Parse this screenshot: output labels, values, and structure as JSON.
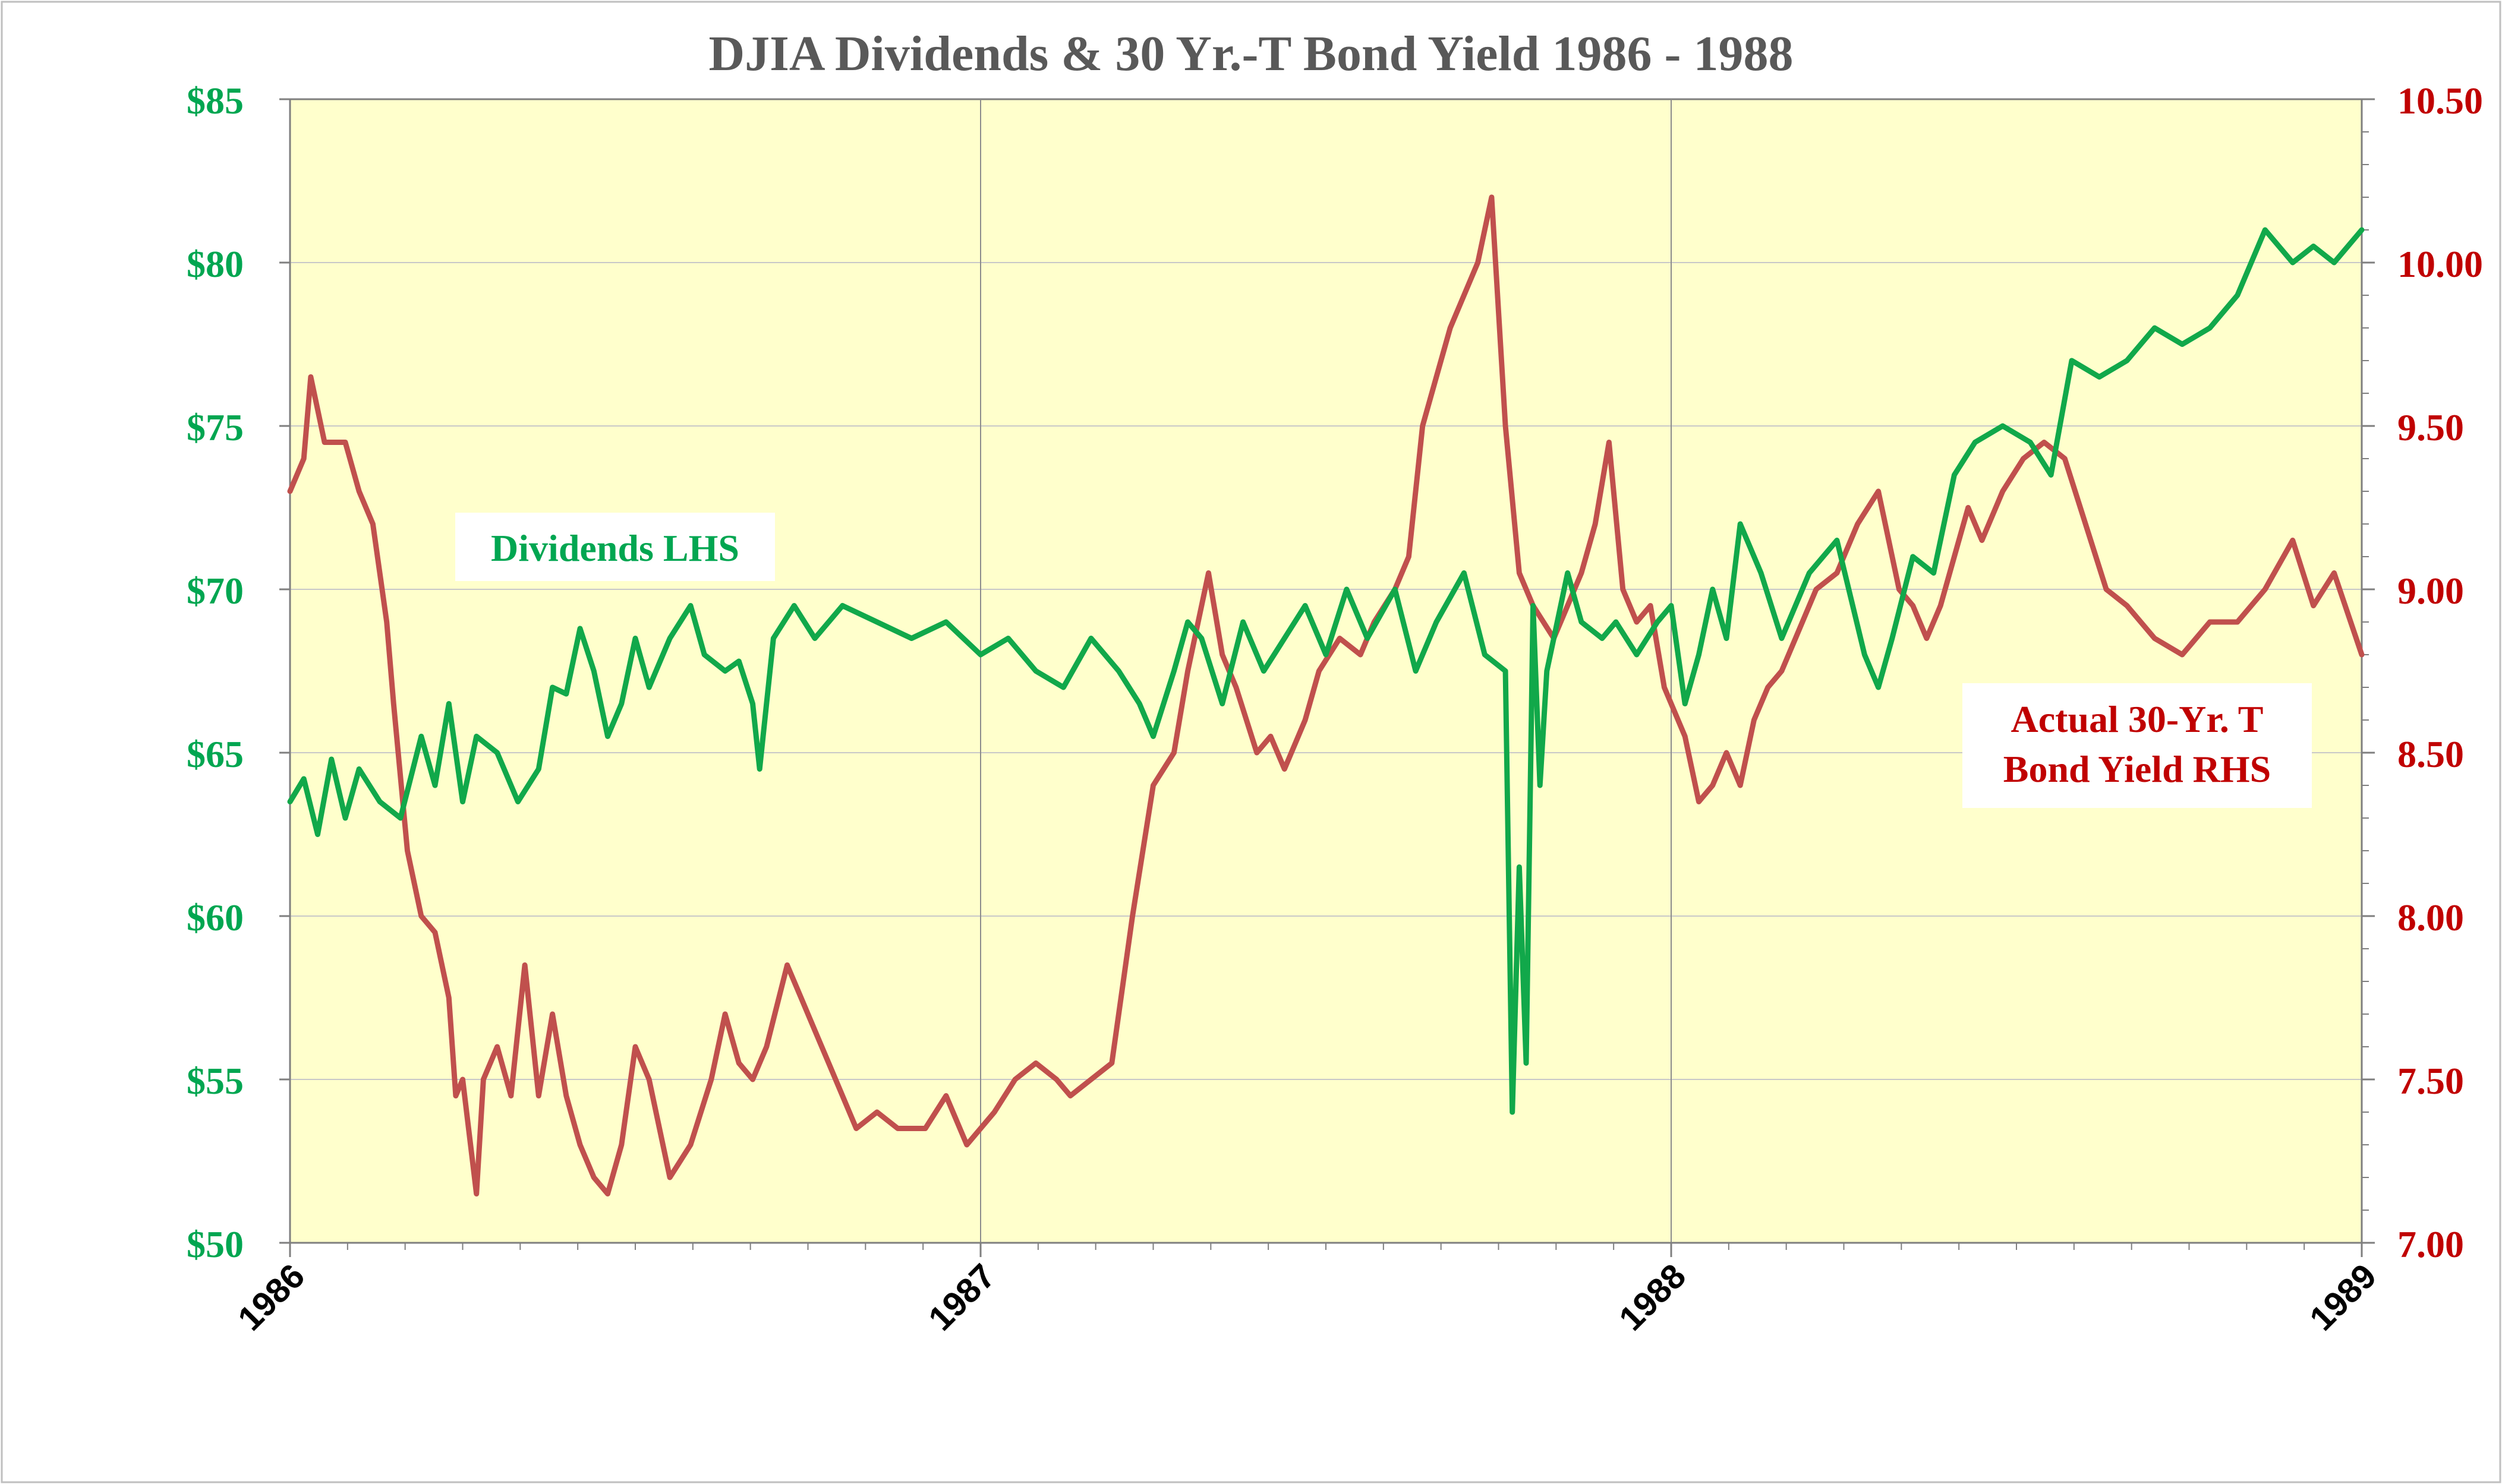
{
  "chart_data": {
    "type": "line",
    "title": "DJIA Dividends & 30 Yr.-T Bond Yield 1986 - 1988",
    "x_ticks": [
      "1986",
      "1987",
      "1988",
      "1989"
    ],
    "x_range": [
      1986,
      1989
    ],
    "y_left": {
      "range": [
        50,
        85
      ],
      "ticks": [
        50,
        55,
        60,
        65,
        70,
        75,
        80,
        85
      ],
      "tick_labels": [
        "$50",
        "$55",
        "$60",
        "$65",
        "$70",
        "$75",
        "$80",
        "$85"
      ]
    },
    "y_right": {
      "range": [
        7.0,
        10.5
      ],
      "ticks": [
        7.0,
        7.5,
        8.0,
        8.5,
        9.0,
        9.5,
        10.0,
        10.5
      ],
      "tick_labels": [
        "7.00",
        "7.50",
        "8.00",
        "8.50",
        "9.00",
        "9.50",
        "10.00",
        "10.50"
      ]
    },
    "grid": true,
    "colors": {
      "plot_background": "#FFFFCC",
      "dividends": "#11A84A",
      "bond_yield": "#C0504D",
      "left_axis_text": "#00A651",
      "right_axis_text": "#C00000",
      "title": "#595959",
      "gridline": "#C8C8C8",
      "border": "#7F7F7F"
    },
    "annotations": [
      {
        "id": "dividends",
        "text": "Dividends LHS",
        "position": "upper-left",
        "color": "#00A651"
      },
      {
        "id": "bond",
        "lines": [
          "Actual 30-Yr. T",
          "Bond Yield RHS"
        ],
        "position": "right",
        "color": "#C00000"
      }
    ],
    "series": [
      {
        "name": "Dividends",
        "axis": "left",
        "color": "#11A84A",
        "x": [
          1986.0,
          1986.02,
          1986.04,
          1986.06,
          1986.08,
          1986.1,
          1986.13,
          1986.16,
          1986.19,
          1986.21,
          1986.23,
          1986.25,
          1986.27,
          1986.3,
          1986.33,
          1986.36,
          1986.38,
          1986.4,
          1986.42,
          1986.44,
          1986.46,
          1986.48,
          1986.5,
          1986.52,
          1986.55,
          1986.58,
          1986.6,
          1986.63,
          1986.65,
          1986.67,
          1986.68,
          1986.7,
          1986.73,
          1986.76,
          1986.8,
          1986.85,
          1986.9,
          1986.95,
          1987.0,
          1987.04,
          1987.08,
          1987.12,
          1987.16,
          1987.2,
          1987.23,
          1987.25,
          1987.28,
          1987.3,
          1987.32,
          1987.35,
          1987.38,
          1987.41,
          1987.44,
          1987.47,
          1987.5,
          1987.53,
          1987.56,
          1987.6,
          1987.63,
          1987.66,
          1987.7,
          1987.73,
          1987.76,
          1987.77,
          1987.78,
          1987.79,
          1987.8,
          1987.81,
          1987.82,
          1987.83,
          1987.85,
          1987.87,
          1987.9,
          1987.92,
          1987.95,
          1987.98,
          1988.0,
          1988.02,
          1988.04,
          1988.06,
          1988.08,
          1988.1,
          1988.13,
          1988.16,
          1988.2,
          1988.24,
          1988.28,
          1988.3,
          1988.32,
          1988.35,
          1988.38,
          1988.41,
          1988.44,
          1988.48,
          1988.52,
          1988.55,
          1988.58,
          1988.62,
          1988.66,
          1988.7,
          1988.74,
          1988.78,
          1988.82,
          1988.86,
          1988.9,
          1988.93,
          1988.96,
          1989.0
        ],
        "y": [
          63.5,
          64.2,
          62.5,
          64.8,
          63.0,
          64.5,
          63.5,
          63.0,
          65.5,
          64.0,
          66.5,
          63.5,
          65.5,
          65.0,
          63.5,
          64.5,
          67.0,
          66.8,
          68.8,
          67.5,
          65.5,
          66.5,
          68.5,
          67.0,
          68.5,
          69.5,
          68.0,
          67.5,
          67.8,
          66.5,
          64.5,
          68.5,
          69.5,
          68.5,
          69.5,
          69.0,
          68.5,
          69.0,
          68.0,
          68.5,
          67.5,
          67.0,
          68.5,
          67.5,
          66.5,
          65.5,
          67.5,
          69.0,
          68.5,
          66.5,
          69.0,
          67.5,
          68.5,
          69.5,
          68.0,
          70.0,
          68.5,
          70.0,
          67.5,
          69.0,
          70.5,
          68.0,
          67.5,
          54.0,
          61.5,
          55.5,
          69.5,
          64.0,
          67.5,
          68.5,
          70.5,
          69.0,
          68.5,
          69.0,
          68.0,
          69.0,
          69.5,
          66.5,
          68.0,
          70.0,
          68.5,
          72.0,
          70.5,
          68.5,
          70.5,
          71.5,
          68.0,
          67.0,
          68.5,
          71.0,
          70.5,
          73.5,
          74.5,
          75.0,
          74.5,
          73.5,
          77.0,
          76.5,
          77.0,
          78.0,
          77.5,
          78.0,
          79.0,
          81.0,
          80.0,
          80.5,
          80.0,
          81.0
        ]
      },
      {
        "name": "30-Yr T Bond Yield",
        "axis": "right",
        "color": "#C0504D",
        "x": [
          1986.0,
          1986.02,
          1986.03,
          1986.05,
          1986.08,
          1986.1,
          1986.12,
          1986.14,
          1986.15,
          1986.17,
          1986.19,
          1986.21,
          1986.23,
          1986.24,
          1986.25,
          1986.27,
          1986.28,
          1986.3,
          1986.32,
          1986.34,
          1986.36,
          1986.38,
          1986.4,
          1986.42,
          1986.44,
          1986.46,
          1986.48,
          1986.5,
          1986.52,
          1986.55,
          1986.58,
          1986.61,
          1986.63,
          1986.65,
          1986.67,
          1986.69,
          1986.72,
          1986.74,
          1986.76,
          1986.78,
          1986.8,
          1986.82,
          1986.85,
          1986.88,
          1986.92,
          1986.95,
          1986.98,
          1987.0,
          1987.02,
          1987.05,
          1987.08,
          1987.11,
          1987.13,
          1987.16,
          1987.19,
          1987.21,
          1987.22,
          1987.25,
          1987.28,
          1987.3,
          1987.33,
          1987.35,
          1987.37,
          1987.4,
          1987.42,
          1987.44,
          1987.47,
          1987.49,
          1987.52,
          1987.55,
          1987.57,
          1987.6,
          1987.62,
          1987.64,
          1987.66,
          1987.68,
          1987.7,
          1987.72,
          1987.74,
          1987.76,
          1987.78,
          1987.8,
          1987.83,
          1987.85,
          1987.87,
          1987.89,
          1987.91,
          1987.93,
          1987.95,
          1987.97,
          1987.99,
          1988.02,
          1988.04,
          1988.06,
          1988.08,
          1988.1,
          1988.12,
          1988.14,
          1988.16,
          1988.18,
          1988.21,
          1988.24,
          1988.27,
          1988.3,
          1988.33,
          1988.35,
          1988.37,
          1988.39,
          1988.41,
          1988.43,
          1988.45,
          1988.48,
          1988.51,
          1988.54,
          1988.57,
          1988.6,
          1988.63,
          1988.66,
          1988.7,
          1988.74,
          1988.78,
          1988.82,
          1988.86,
          1988.9,
          1988.93,
          1988.96,
          1989.0
        ],
        "y": [
          9.3,
          9.4,
          9.65,
          9.45,
          9.45,
          9.3,
          9.2,
          8.9,
          8.65,
          8.2,
          8.0,
          7.95,
          7.75,
          7.45,
          7.5,
          7.15,
          7.5,
          7.6,
          7.45,
          7.85,
          7.45,
          7.7,
          7.45,
          7.3,
          7.2,
          7.15,
          7.3,
          7.6,
          7.5,
          7.2,
          7.3,
          7.5,
          7.7,
          7.55,
          7.5,
          7.6,
          7.85,
          7.75,
          7.65,
          7.55,
          7.45,
          7.35,
          7.4,
          7.35,
          7.35,
          7.45,
          7.3,
          7.35,
          7.4,
          7.5,
          7.55,
          7.5,
          7.45,
          7.5,
          7.55,
          7.85,
          8.0,
          8.4,
          8.5,
          8.75,
          9.05,
          8.8,
          8.7,
          8.5,
          8.55,
          8.45,
          8.6,
          8.75,
          8.85,
          8.8,
          8.9,
          9.0,
          9.1,
          9.5,
          9.65,
          9.8,
          9.9,
          10.0,
          10.2,
          9.5,
          9.05,
          8.95,
          8.85,
          8.95,
          9.05,
          9.2,
          9.45,
          9.0,
          8.9,
          8.95,
          8.7,
          8.55,
          8.35,
          8.4,
          8.5,
          8.4,
          8.6,
          8.7,
          8.75,
          8.85,
          9.0,
          9.05,
          9.2,
          9.3,
          9.0,
          8.95,
          8.85,
          8.95,
          9.1,
          9.25,
          9.15,
          9.3,
          9.4,
          9.45,
          9.4,
          9.2,
          9.0,
          8.95,
          8.85,
          8.8,
          8.9,
          8.9,
          9.0,
          9.15,
          8.95,
          9.05,
          8.8
        ]
      }
    ]
  }
}
